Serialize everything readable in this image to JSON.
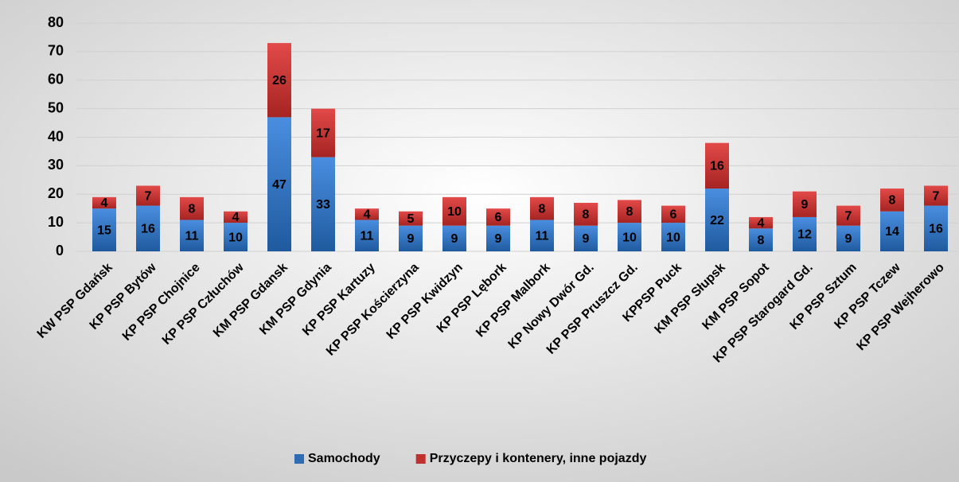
{
  "chart_data": {
    "type": "stacked_bar",
    "categories": [
      "KW PSP Gdańsk",
      "KP PSP Bytów",
      "KP PSP Chojnice",
      "KP PSP Człuchów",
      "KM PSP Gdansk",
      "KM PSP Gdynia",
      "KP PSP Kartuzy",
      "KP PSP Kościerzyna",
      "KP PSP Kwidzyn",
      "KP PSP Lębork",
      "KP PSP Malbork",
      "KP Nowy Dwór Gd.",
      "KP PSP Pruszcz Gd.",
      "KPPSP Puck",
      "KM PSP Słupsk",
      "KM PSP Sopot",
      "KP PSP Starogard Gd.",
      "KP PSP Sztum",
      "KP PSP Tczew",
      "KP PSP Wejherowo"
    ],
    "series": [
      {
        "name": "Samochody",
        "color": "#2e6db4",
        "values": [
          15,
          16,
          11,
          10,
          47,
          33,
          11,
          9,
          9,
          9,
          11,
          9,
          10,
          10,
          22,
          8,
          12,
          9,
          14,
          16
        ]
      },
      {
        "name": "Przyczepy i kontenery, inne pojazdy",
        "color": "#c0302e",
        "values": [
          4,
          7,
          8,
          4,
          26,
          17,
          4,
          5,
          10,
          6,
          8,
          8,
          8,
          6,
          16,
          4,
          9,
          7,
          8,
          7
        ]
      }
    ],
    "ylim": [
      0,
      80
    ],
    "yticks": [
      0,
      10,
      20,
      30,
      40,
      50,
      60,
      70,
      80
    ],
    "grid": true,
    "legend": "bottom"
  }
}
